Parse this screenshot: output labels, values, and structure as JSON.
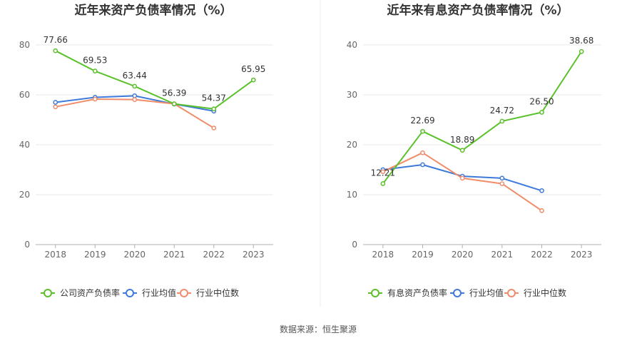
{
  "chart_data": [
    {
      "type": "line",
      "title": "近年来资产负债率情况（%）",
      "categories": [
        "2018",
        "2019",
        "2020",
        "2021",
        "2022",
        "2023"
      ],
      "ylim": [
        0,
        80
      ],
      "yticks": [
        0,
        20,
        40,
        60,
        80
      ],
      "series": [
        {
          "name": "公司资产负债率",
          "color": "#5ac12a",
          "values": [
            77.66,
            69.53,
            63.44,
            56.39,
            54.37,
            65.95
          ],
          "labels": [
            "77.66",
            "69.53",
            "63.44",
            "56.39",
            "54.37",
            "65.95"
          ]
        },
        {
          "name": "行业均值",
          "color": "#3d7ad9",
          "values": [
            57.0,
            59.0,
            59.6,
            56.3,
            53.5,
            null
          ]
        },
        {
          "name": "行业中位数",
          "color": "#f08c69",
          "values": [
            55.2,
            58.3,
            58.1,
            56.4,
            46.7,
            null
          ]
        }
      ]
    },
    {
      "type": "line",
      "title": "近年来有息资产负债率情况（%）",
      "categories": [
        "2018",
        "2019",
        "2020",
        "2021",
        "2022",
        "2023"
      ],
      "ylim": [
        0,
        40
      ],
      "yticks": [
        0,
        10,
        20,
        30,
        40
      ],
      "series": [
        {
          "name": "有息资产负债率",
          "color": "#5ac12a",
          "values": [
            12.21,
            22.69,
            18.89,
            24.72,
            26.5,
            38.68
          ],
          "labels": [
            "12.21",
            "22.69",
            "18.89",
            "24.72",
            "26.50",
            "38.68"
          ]
        },
        {
          "name": "行业均值",
          "color": "#3d7ad9",
          "values": [
            15.0,
            16.0,
            13.7,
            13.3,
            10.8,
            null
          ]
        },
        {
          "name": "行业中位数",
          "color": "#f08c69",
          "values": [
            14.6,
            18.4,
            13.3,
            12.2,
            6.8,
            null
          ]
        }
      ]
    }
  ],
  "source": "数据来源：恒生聚源",
  "colors": {
    "grid": "#e8e8e8",
    "axis": "#b0b0b0",
    "divider": "#eeeeee"
  }
}
